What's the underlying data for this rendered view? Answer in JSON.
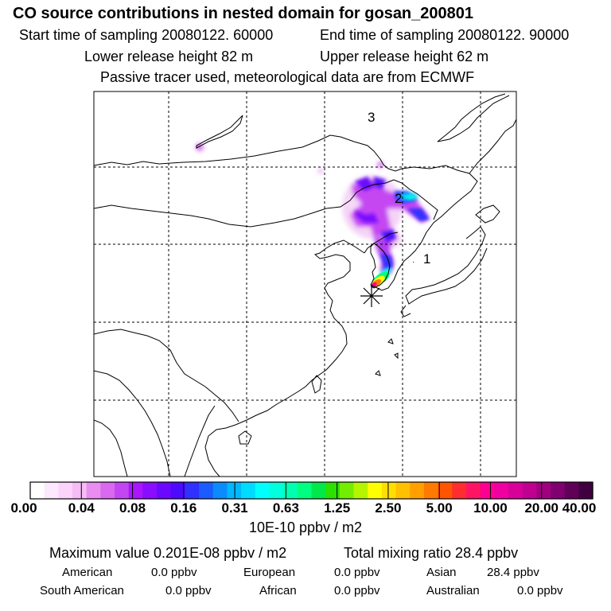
{
  "title": "CO  source contributions in nested domain for gosan_200801",
  "header": {
    "start_time": "Start time of sampling 20080122. 60000",
    "end_time": "End time of sampling 20080122. 90000",
    "lower_release": "Lower release height   82 m",
    "upper_release": "Upper release height   62 m",
    "tracer_note": "Passive tracer used, meteorological data are from ECMWF"
  },
  "map": {
    "labels": [
      "1",
      "2",
      "3"
    ],
    "receptor_marker": "asterisk-icon"
  },
  "colorbar": {
    "colors": [
      "#ffffff",
      "#fde8fd",
      "#fbd3fb",
      "#f6bcf6",
      "#e98ef0",
      "#d969ef",
      "#c446f2",
      "#aa16ff",
      "#8a0dff",
      "#6b08ff",
      "#4d0aff",
      "#3030ff",
      "#1a5cff",
      "#0a8cff",
      "#00b8ff",
      "#00dcff",
      "#00ffff",
      "#00ffdd",
      "#00ffb0",
      "#00ff80",
      "#00e84a",
      "#2ce000",
      "#73ee00",
      "#b6f500",
      "#ffff00",
      "#ffdf00",
      "#ffc000",
      "#ffa000",
      "#ff7a00",
      "#ff5500",
      "#ff2d2d",
      "#ff1464",
      "#ff0090",
      "#f000a0",
      "#d80098",
      "#c00090",
      "#a00080",
      "#800070",
      "#600058",
      "#400040"
    ],
    "ticks": [
      "0.00",
      "0.04",
      "0.08",
      "0.16",
      "0.31",
      "0.63",
      "1.25",
      "2.50",
      "5.00",
      "10.00",
      "20.00",
      "40.00"
    ],
    "units": "10E-10 ppbv / m2"
  },
  "summary": {
    "max_value": "Maximum value  0.201E-08 ppbv / m2",
    "total_mixing": "Total mixing ratio       28.4 ppbv",
    "regions": [
      {
        "name": "American",
        "value": "0.0 ppbv"
      },
      {
        "name": "European",
        "value": "0.0 ppbv"
      },
      {
        "name": "Asian",
        "value": "28.4 ppbv"
      },
      {
        "name": "South American",
        "value": "0.0 ppbv"
      },
      {
        "name": "African",
        "value": "0.0 ppbv"
      },
      {
        "name": "Australian",
        "value": "0.0 ppbv"
      }
    ]
  }
}
